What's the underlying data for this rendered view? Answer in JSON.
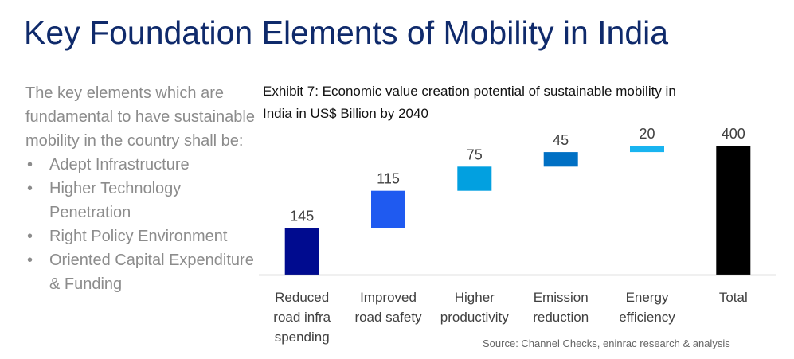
{
  "title": "Key Foundation Elements of Mobility in India",
  "intro": {
    "text": "The key elements which are fundamental to have sustainable mobility in the country shall be:",
    "bullets": [
      "Adept Infrastructure",
      "Higher Technology Penetration",
      "Right Policy Environment",
      "Oriented Capital Expenditure & Funding"
    ]
  },
  "chart_data": {
    "type": "bar",
    "subtype": "waterfall",
    "title": "Exhibit 7: Economic value creation potential of sustainable mobility in India in US$ Billion by 2040",
    "categories": [
      [
        "Reduced",
        "road infra",
        "spending"
      ],
      [
        "Improved",
        "road safety"
      ],
      [
        "Higher",
        "productivity"
      ],
      [
        "Emission",
        "reduction"
      ],
      [
        "Energy",
        "efficiency"
      ],
      [
        "Total"
      ]
    ],
    "values": [
      145,
      115,
      75,
      45,
      20,
      400
    ],
    "is_total": [
      false,
      false,
      false,
      false,
      false,
      true
    ],
    "colors": [
      "#000b8f",
      "#1f5af0",
      "#02a0e0",
      "#0070c4",
      "#19b4f0",
      "#000000"
    ],
    "ylim": [
      0,
      400
    ],
    "grid": false,
    "legend": false
  },
  "source": "Source: Channel Checks, eninrac research & analysis"
}
